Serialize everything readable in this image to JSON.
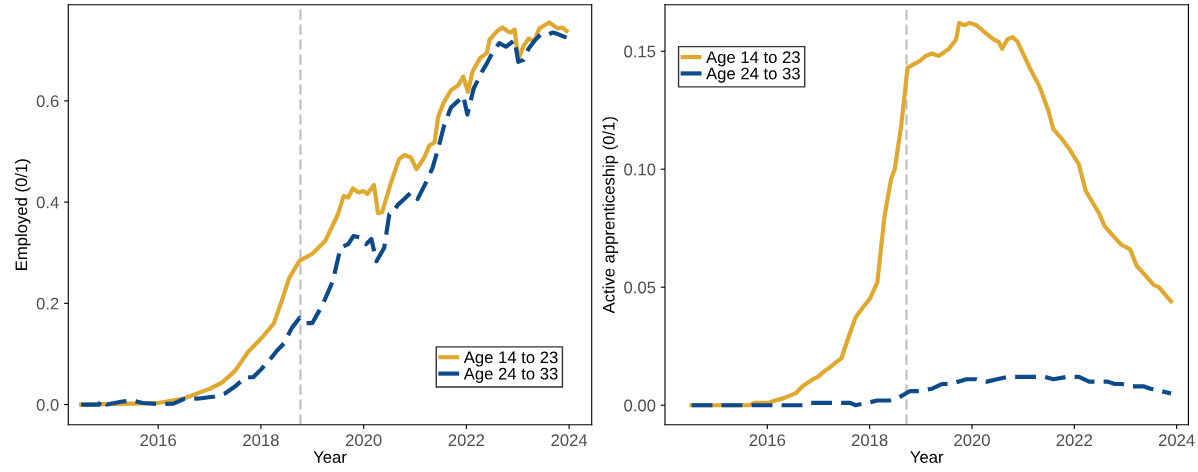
{
  "chart_data": [
    {
      "type": "line",
      "xlabel": "Year",
      "ylabel": "Employed (0/1)",
      "xlim": [
        2014.25,
        2024.44
      ],
      "ylim": [
        -0.04,
        0.79
      ],
      "xticks": [
        2016,
        2018,
        2020,
        2022,
        2024
      ],
      "yticks": [
        {
          "value": 0,
          "label": "0.0"
        },
        {
          "value": 0.2,
          "label": "0.2"
        },
        {
          "value": 0.4,
          "label": "0.4"
        },
        {
          "value": 0.6,
          "label": "0.6"
        }
      ],
      "grid": false,
      "legend": "bottom right",
      "marker": "none",
      "ref_lines": [
        {
          "axis": "x",
          "value": 2018.77,
          "label": null,
          "color": "#bdbdbd",
          "line_style": "dashed"
        }
      ],
      "series": [
        {
          "name": "Age 14 to 23",
          "color": "#e0a82e",
          "line_style": "solid",
          "x": [
            2014.5,
            2015.0,
            2015.5,
            2016.0,
            2016.5,
            2017.0,
            2017.25,
            2017.5,
            2017.75,
            2018.0,
            2018.25,
            2018.4,
            2018.55,
            2018.75,
            2019.0,
            2019.25,
            2019.5,
            2019.61,
            2019.7,
            2019.79,
            2019.9,
            2020.0,
            2020.07,
            2020.2,
            2020.28,
            2020.36,
            2020.53,
            2020.69,
            2020.79,
            2020.92,
            2021.03,
            2021.18,
            2021.28,
            2021.38,
            2021.45,
            2021.55,
            2021.7,
            2021.84,
            2021.94,
            2022.03,
            2022.12,
            2022.27,
            2022.4,
            2022.45,
            2022.6,
            2022.7,
            2022.8,
            2022.86,
            2022.94,
            2023.01,
            2023.11,
            2023.21,
            2023.32,
            2023.42,
            2023.61,
            2023.78,
            2023.87,
            2023.95
          ],
          "values": [
            0.0,
            0.001,
            0.002,
            0.003,
            0.012,
            0.031,
            0.044,
            0.067,
            0.104,
            0.13,
            0.16,
            0.203,
            0.25,
            0.284,
            0.298,
            0.323,
            0.376,
            0.412,
            0.409,
            0.427,
            0.419,
            0.422,
            0.416,
            0.434,
            0.378,
            0.38,
            0.438,
            0.485,
            0.493,
            0.488,
            0.465,
            0.488,
            0.512,
            0.518,
            0.568,
            0.595,
            0.621,
            0.631,
            0.648,
            0.618,
            0.658,
            0.685,
            0.695,
            0.721,
            0.738,
            0.745,
            0.738,
            0.735,
            0.741,
            0.681,
            0.708,
            0.723,
            0.718,
            0.743,
            0.755,
            0.743,
            0.745,
            0.738
          ]
        },
        {
          "name": "Age 24 to 33",
          "color": "#0b4a8b",
          "line_style": "dashed",
          "x": [
            2014.5,
            2014.85,
            2014.9,
            2015.0,
            2015.3,
            2015.5,
            2015.7,
            2016.0,
            2016.3,
            2016.5,
            2016.8,
            2017.1,
            2017.3,
            2017.5,
            2017.7,
            2017.85,
            2018.0,
            2018.2,
            2018.3,
            2018.45,
            2018.6,
            2018.75,
            2018.85,
            2019.0,
            2019.2,
            2019.4,
            2019.55,
            2019.7,
            2019.8,
            2019.95,
            2020.05,
            2020.15,
            2020.25,
            2020.4,
            2020.5,
            2020.56,
            2020.66,
            2020.79,
            2020.92,
            2021.05,
            2021.21,
            2021.34,
            2021.47,
            2021.57,
            2021.7,
            2021.84,
            2021.94,
            2022.02,
            2022.14,
            2022.3,
            2022.4,
            2022.5,
            2022.64,
            2022.77,
            2022.94,
            2023.01,
            2023.11,
            2023.21,
            2023.32,
            2023.45,
            2023.61,
            2023.68,
            2023.78,
            2023.95
          ],
          "values": [
            0.0,
            0.0,
            0.01,
            0.0,
            0.006,
            0.008,
            0.003,
            0.001,
            0.002,
            0.011,
            0.012,
            0.016,
            0.022,
            0.036,
            0.054,
            0.054,
            0.069,
            0.092,
            0.105,
            0.121,
            0.151,
            0.171,
            0.161,
            0.161,
            0.197,
            0.244,
            0.31,
            0.317,
            0.333,
            0.33,
            0.317,
            0.327,
            0.283,
            0.31,
            0.376,
            0.378,
            0.394,
            0.406,
            0.419,
            0.406,
            0.438,
            0.467,
            0.513,
            0.553,
            0.587,
            0.6,
            0.61,
            0.573,
            0.624,
            0.657,
            0.674,
            0.694,
            0.714,
            0.707,
            0.72,
            0.677,
            0.681,
            0.703,
            0.718,
            0.732,
            0.732,
            0.735,
            0.732,
            0.725
          ]
        }
      ]
    },
    {
      "type": "line",
      "xlabel": "Year",
      "ylabel": "Active apprenticeship (0/1)",
      "xlim": [
        2014.0,
        2024.23
      ],
      "ylim": [
        -0.0083,
        0.1697
      ],
      "xticks": [
        2016,
        2018,
        2020,
        2022,
        2024
      ],
      "yticks": [
        {
          "value": 0,
          "label": "0.00"
        },
        {
          "value": 0.05,
          "label": "0.05"
        },
        {
          "value": 0.1,
          "label": "0.10"
        },
        {
          "value": 0.15,
          "label": "0.15"
        }
      ],
      "grid": false,
      "legend": "top left",
      "marker": "none",
      "ref_lines": [
        {
          "axis": "x",
          "value": 2018.72,
          "label": null,
          "color": "#bdbdbd",
          "line_style": "dashed"
        }
      ],
      "series": [
        {
          "name": "Age 14 to 23",
          "color": "#e0a82e",
          "line_style": "solid",
          "x": [
            2014.52,
            2015.65,
            2015.75,
            2016.02,
            2016.15,
            2016.32,
            2016.55,
            2016.69,
            2016.89,
            2016.99,
            2017.09,
            2017.22,
            2017.45,
            2017.59,
            2017.72,
            2017.85,
            2018.0,
            2018.15,
            2018.29,
            2018.42,
            2018.49,
            2018.62,
            2018.74,
            2018.82,
            2018.99,
            2019.09,
            2019.22,
            2019.35,
            2019.55,
            2019.69,
            2019.75,
            2019.85,
            2019.95,
            2020.09,
            2020.25,
            2020.42,
            2020.52,
            2020.59,
            2020.69,
            2020.79,
            2020.89,
            2021.02,
            2021.15,
            2021.32,
            2021.49,
            2021.59,
            2021.75,
            2021.92,
            2022.09,
            2022.22,
            2022.49,
            2022.59,
            2022.75,
            2022.92,
            2023.09,
            2023.22,
            2023.35,
            2023.55,
            2023.65,
            2023.89
          ],
          "values": [
            0.0,
            0.0,
            0.001,
            0.001,
            0.002,
            0.003,
            0.005,
            0.008,
            0.011,
            0.012,
            0.014,
            0.016,
            0.02,
            0.029,
            0.037,
            0.041,
            0.045,
            0.052,
            0.08,
            0.096,
            0.1,
            0.119,
            0.143,
            0.144,
            0.146,
            0.148,
            0.149,
            0.148,
            0.151,
            0.155,
            0.162,
            0.161,
            0.162,
            0.161,
            0.158,
            0.155,
            0.154,
            0.151,
            0.155,
            0.156,
            0.154,
            0.148,
            0.142,
            0.135,
            0.125,
            0.117,
            0.113,
            0.108,
            0.102,
            0.091,
            0.081,
            0.076,
            0.072,
            0.068,
            0.066,
            0.059,
            0.056,
            0.051,
            0.05,
            0.044
          ]
        },
        {
          "name": "Age 24 to 33",
          "color": "#0b4a8b",
          "line_style": "dashed",
          "x": [
            2014.52,
            2016.69,
            2016.82,
            2016.95,
            2017.62,
            2017.72,
            2017.95,
            2018.15,
            2018.39,
            2018.55,
            2018.79,
            2018.99,
            2019.22,
            2019.42,
            2019.59,
            2019.89,
            2020.09,
            2020.29,
            2020.49,
            2020.69,
            2020.89,
            2021.22,
            2021.32,
            2021.42,
            2021.59,
            2021.85,
            2022.09,
            2022.29,
            2022.55,
            2022.65,
            2022.79,
            2022.92,
            2023.12,
            2023.35,
            2023.49,
            2023.89
          ],
          "values": [
            0.0,
            0.0,
            0.001,
            0.001,
            0.001,
            0.0,
            0.001,
            0.002,
            0.002,
            0.003,
            0.006,
            0.006,
            0.007,
            0.009,
            0.009,
            0.011,
            0.011,
            0.01,
            0.011,
            0.012,
            0.012,
            0.012,
            0.012,
            0.012,
            0.011,
            0.012,
            0.012,
            0.01,
            0.01,
            0.01,
            0.009,
            0.009,
            0.008,
            0.008,
            0.007,
            0.005
          ]
        }
      ]
    }
  ]
}
